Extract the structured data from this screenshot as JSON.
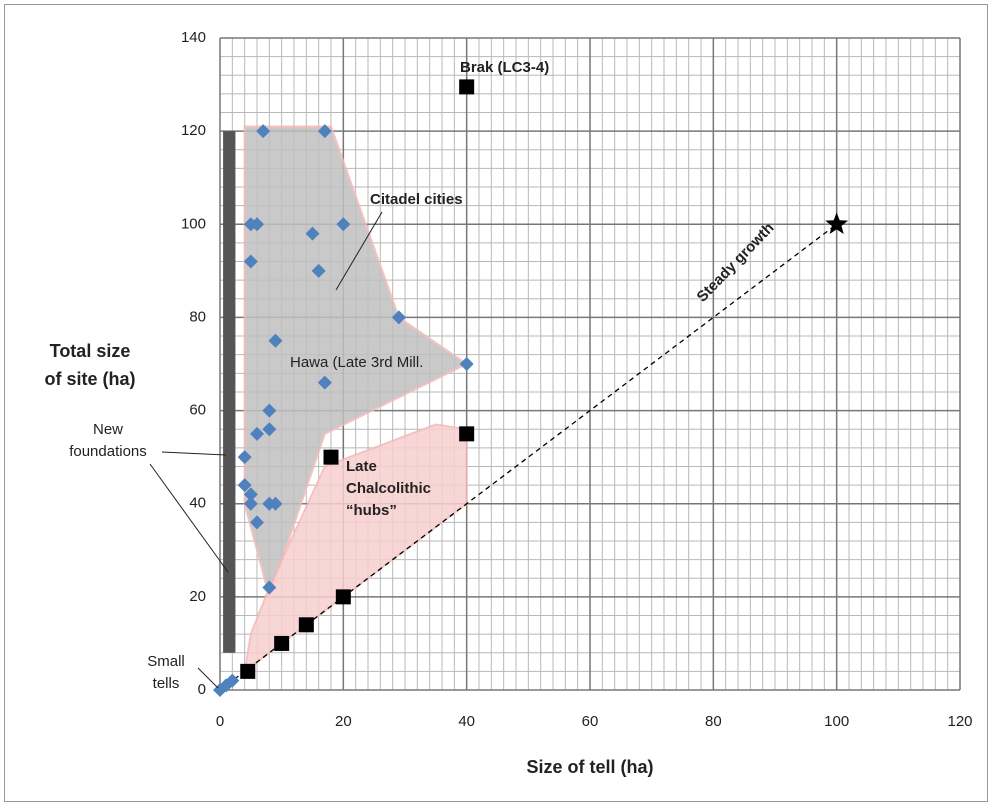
{
  "chart_data": {
    "type": "scatter",
    "x_label": "Size of tell (ha)",
    "y_label": [
      "Total size",
      "of site (ha)"
    ],
    "xlim": [
      0,
      120
    ],
    "xticks": [
      0,
      20,
      40,
      60,
      80,
      100,
      120
    ],
    "ylim": [
      0,
      140
    ],
    "yticks": [
      0,
      20,
      40,
      60,
      80,
      100,
      120,
      140
    ],
    "grid": true,
    "minor_divisions": {
      "x": 10,
      "y": 5
    },
    "series": [
      {
        "marker": "diamond",
        "color": "#4f81bd",
        "x": [
          7,
          17,
          5,
          6,
          20,
          15,
          5,
          16,
          29,
          9,
          40,
          17,
          8,
          8,
          6,
          4,
          4,
          5,
          5,
          8,
          9,
          6,
          8,
          0,
          1,
          2
        ],
        "values": [
          120,
          120,
          100,
          100,
          100,
          98,
          92,
          90,
          80,
          75,
          70,
          66,
          60,
          56,
          55,
          50,
          44,
          42,
          40,
          40,
          40,
          36,
          22,
          0,
          1,
          2
        ]
      },
      {
        "marker": "square",
        "color": "#000000",
        "x": [
          40,
          18,
          40,
          20,
          14,
          10,
          4.5
        ],
        "values": [
          129.5,
          50,
          55,
          20,
          14,
          10,
          4
        ]
      },
      {
        "marker": "star",
        "color": "#000000",
        "x": [
          100
        ],
        "values": [
          100
        ]
      }
    ],
    "regions": [
      {
        "color": "#c0c0c0",
        "stroke": "#f4b8b8",
        "x": [
          4,
          18,
          29,
          40,
          17,
          8,
          4
        ],
        "values": [
          121,
          121,
          80,
          70,
          55,
          20,
          40
        ]
      },
      {
        "color": "#f8d0d0",
        "stroke": "#f4b8b8",
        "x": [
          4,
          5,
          8,
          17,
          35,
          40,
          40,
          20,
          10,
          4
        ],
        "values": [
          4,
          12,
          22,
          48,
          57,
          56,
          40,
          20,
          10,
          4
        ]
      }
    ],
    "column": {
      "color": "#555555",
      "x": [
        0.5,
        2.5
      ],
      "values": [
        8,
        120
      ]
    },
    "trend_line": {
      "x": [
        0,
        100
      ],
      "values": [
        0,
        100
      ]
    },
    "annotations": [
      {
        "lines": [
          "Brak (LC3-4)"
        ],
        "bold": true
      },
      {
        "lines": [
          "Citadel cities"
        ],
        "bold": true
      },
      {
        "lines": [
          "Steady growth"
        ],
        "bold": true
      },
      {
        "lines": [
          "Hawa (Late 3rd Mill."
        ],
        "bold": false
      },
      {
        "lines": [
          "Late",
          "Chalcolithic",
          "“hubs”"
        ],
        "bold": true
      },
      {
        "lines": [
          "New",
          "foundations"
        ],
        "bold": false
      },
      {
        "lines": [
          "Small",
          "tells"
        ],
        "bold": false
      }
    ]
  }
}
